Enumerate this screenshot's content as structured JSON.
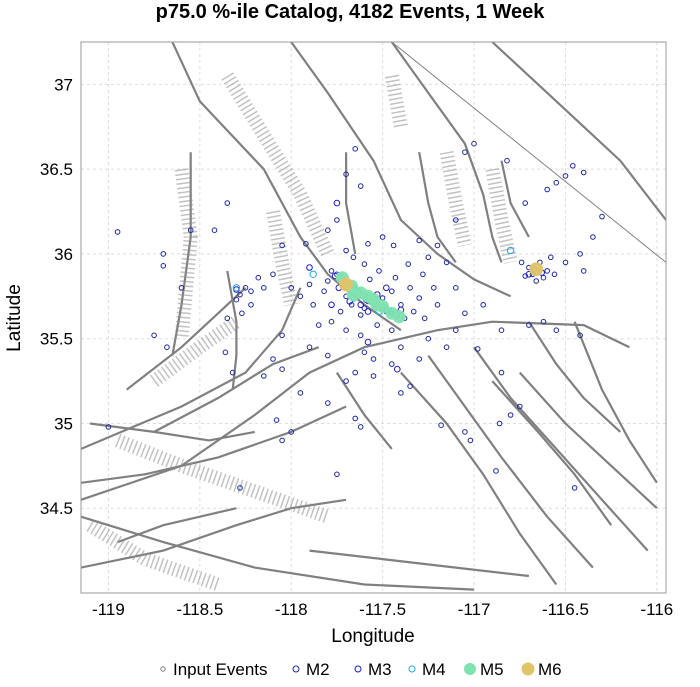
{
  "chart_data": {
    "type": "scatter",
    "title": "p75.0 %-ile Catalog, 4182 Events, 1 Week",
    "xlabel": "Longitude",
    "ylabel": "Latitude",
    "xlim": [
      -119.15,
      -115.95
    ],
    "ylim": [
      34.0,
      37.25
    ],
    "x_ticks": [
      -119,
      -118.5,
      -118,
      -117.5,
      -117,
      -116.5,
      -116
    ],
    "y_ticks": [
      34.5,
      35,
      35.5,
      36,
      36.5,
      37
    ],
    "x_tick_labels": [
      "-119",
      "-118.5",
      "-118",
      "-117.5",
      "-117",
      "-116.5",
      "-116"
    ],
    "y_tick_labels": [
      "34.5",
      "35",
      "35.5",
      "36",
      "36.5",
      "37"
    ],
    "grid": true,
    "legend_position": "bottom",
    "series": [
      {
        "name": "Input Events",
        "marker": "small-open-circle",
        "color": "#808080",
        "points": []
      },
      {
        "name": "M2",
        "marker": "open-circle",
        "color": "#1e2a9c",
        "points": [
          [
            -117.72,
            35.86
          ],
          [
            -117.68,
            35.82
          ],
          [
            -117.65,
            35.79
          ],
          [
            -117.62,
            35.76
          ],
          [
            -117.58,
            35.72
          ],
          [
            -117.55,
            35.7
          ],
          [
            -117.52,
            35.68
          ],
          [
            -117.48,
            35.66
          ],
          [
            -117.45,
            35.65
          ],
          [
            -117.42,
            35.63
          ],
          [
            -117.75,
            35.88
          ],
          [
            -117.78,
            35.9
          ],
          [
            -117.7,
            35.75
          ],
          [
            -117.6,
            35.68
          ],
          [
            -117.5,
            35.74
          ],
          [
            -117.45,
            35.78
          ],
          [
            -117.4,
            35.7
          ],
          [
            -117.38,
            35.62
          ],
          [
            -117.62,
            35.64
          ],
          [
            -117.67,
            35.7
          ],
          [
            -117.8,
            35.84
          ],
          [
            -117.82,
            35.78
          ],
          [
            -117.73,
            35.66
          ],
          [
            -117.57,
            35.85
          ],
          [
            -117.52,
            35.9
          ],
          [
            -117.43,
            35.86
          ],
          [
            -117.35,
            35.8
          ],
          [
            -117.3,
            35.74
          ],
          [
            -117.33,
            35.66
          ],
          [
            -117.28,
            35.88
          ],
          [
            -117.36,
            35.94
          ],
          [
            -117.6,
            35.94
          ],
          [
            -117.66,
            35.98
          ],
          [
            -117.7,
            36.02
          ],
          [
            -117.58,
            36.06
          ],
          [
            -117.5,
            36.1
          ],
          [
            -117.44,
            36.05
          ],
          [
            -117.3,
            36.08
          ],
          [
            -117.25,
            35.98
          ],
          [
            -117.22,
            35.8
          ],
          [
            -117.2,
            35.7
          ],
          [
            -117.27,
            35.62
          ],
          [
            -117.45,
            35.55
          ],
          [
            -117.53,
            35.58
          ],
          [
            -117.62,
            35.52
          ],
          [
            -117.7,
            35.55
          ],
          [
            -117.78,
            35.6
          ],
          [
            -117.88,
            35.7
          ],
          [
            -117.9,
            35.82
          ],
          [
            -117.95,
            35.75
          ],
          [
            -118.0,
            35.8
          ],
          [
            -117.85,
            35.58
          ],
          [
            -117.9,
            35.45
          ],
          [
            -117.8,
            35.4
          ],
          [
            -117.6,
            35.42
          ],
          [
            -117.55,
            35.38
          ],
          [
            -117.65,
            35.3
          ],
          [
            -117.7,
            35.25
          ],
          [
            -117.55,
            35.28
          ],
          [
            -117.45,
            35.35
          ],
          [
            -117.4,
            35.45
          ],
          [
            -117.25,
            35.5
          ],
          [
            -117.15,
            35.45
          ],
          [
            -117.1,
            35.55
          ],
          [
            -117.05,
            35.65
          ],
          [
            -117.1,
            35.8
          ],
          [
            -117.15,
            35.95
          ],
          [
            -117.2,
            36.05
          ],
          [
            -117.1,
            36.2
          ],
          [
            -117.05,
            36.6
          ],
          [
            -117.0,
            36.65
          ],
          [
            -116.95,
            35.7
          ],
          [
            -116.85,
            35.55
          ],
          [
            -116.8,
            35.05
          ],
          [
            -116.75,
            35.1
          ],
          [
            -116.7,
            35.92
          ],
          [
            -116.68,
            35.88
          ],
          [
            -116.64,
            35.95
          ],
          [
            -116.62,
            35.86
          ],
          [
            -116.6,
            35.9
          ],
          [
            -116.66,
            35.84
          ],
          [
            -116.72,
            35.87
          ],
          [
            -116.74,
            35.95
          ],
          [
            -116.56,
            35.88
          ],
          [
            -116.58,
            35.98
          ],
          [
            -116.5,
            35.95
          ],
          [
            -116.42,
            36.0
          ],
          [
            -116.4,
            35.9
          ],
          [
            -116.35,
            36.1
          ],
          [
            -116.3,
            36.22
          ],
          [
            -116.46,
            36.52
          ],
          [
            -116.4,
            36.48
          ],
          [
            -116.5,
            36.46
          ],
          [
            -116.6,
            36.38
          ],
          [
            -116.55,
            36.42
          ],
          [
            -116.82,
            36.55
          ],
          [
            -116.72,
            36.3
          ],
          [
            -116.45,
            34.62
          ],
          [
            -116.88,
            34.72
          ],
          [
            -116.86,
            35.0
          ],
          [
            -116.7,
            35.58
          ],
          [
            -116.62,
            35.6
          ],
          [
            -117.62,
            36.4
          ],
          [
            -117.65,
            36.62
          ],
          [
            -117.7,
            36.47
          ],
          [
            -117.75,
            36.2
          ],
          [
            -117.8,
            36.14
          ],
          [
            -117.92,
            36.06
          ],
          [
            -118.05,
            36.05
          ],
          [
            -118.1,
            35.88
          ],
          [
            -118.15,
            35.8
          ],
          [
            -118.18,
            35.86
          ],
          [
            -118.22,
            35.78
          ],
          [
            -118.25,
            35.8
          ],
          [
            -118.28,
            35.76
          ],
          [
            -118.22,
            35.7
          ],
          [
            -118.27,
            35.65
          ],
          [
            -118.3,
            35.73
          ],
          [
            -118.35,
            35.62
          ],
          [
            -118.36,
            35.42
          ],
          [
            -118.32,
            35.3
          ],
          [
            -118.05,
            35.52
          ],
          [
            -118.1,
            35.38
          ],
          [
            -118.15,
            35.28
          ],
          [
            -118.05,
            35.32
          ],
          [
            -117.95,
            35.18
          ],
          [
            -117.8,
            35.12
          ],
          [
            -117.65,
            35.03
          ],
          [
            -117.62,
            34.98
          ],
          [
            -117.75,
            34.7
          ],
          [
            -118.0,
            34.95
          ],
          [
            -118.05,
            34.9
          ],
          [
            -118.08,
            35.02
          ],
          [
            -118.35,
            36.3
          ],
          [
            -118.42,
            36.14
          ],
          [
            -118.55,
            36.14
          ],
          [
            -118.7,
            36.0
          ],
          [
            -118.7,
            35.93
          ],
          [
            -118.6,
            35.8
          ],
          [
            -118.75,
            35.52
          ],
          [
            -118.68,
            35.45
          ],
          [
            -118.95,
            36.13
          ],
          [
            -119.0,
            34.98
          ],
          [
            -118.28,
            34.62
          ],
          [
            -117.4,
            35.18
          ],
          [
            -117.3,
            35.38
          ],
          [
            -117.35,
            35.22
          ],
          [
            -116.98,
            35.44
          ],
          [
            -116.85,
            35.3
          ],
          [
            -117.05,
            34.95
          ],
          [
            -117.18,
            34.99
          ],
          [
            -117.02,
            34.9
          ],
          [
            -116.55,
            35.55
          ],
          [
            -116.42,
            35.52
          ]
        ]
      },
      {
        "name": "M3",
        "marker": "open-circle",
        "color": "#1c1cc8",
        "points": [
          [
            -117.7,
            35.84
          ],
          [
            -117.66,
            35.8
          ],
          [
            -117.63,
            35.77
          ],
          [
            -117.59,
            35.73
          ],
          [
            -117.55,
            35.71
          ],
          [
            -117.5,
            35.69
          ],
          [
            -117.46,
            35.66
          ],
          [
            -117.43,
            35.64
          ],
          [
            -117.76,
            35.87
          ],
          [
            -117.62,
            35.7
          ],
          [
            -117.58,
            35.66
          ],
          [
            -117.68,
            35.72
          ],
          [
            -117.53,
            35.76
          ],
          [
            -117.48,
            35.8
          ],
          [
            -117.74,
            35.8
          ],
          [
            -117.4,
            35.67
          ],
          [
            -116.67,
            35.91
          ],
          [
            -116.63,
            35.89
          ],
          [
            -116.7,
            35.88
          ],
          [
            -117.58,
            35.48
          ],
          [
            -117.42,
            35.32
          ],
          [
            -117.75,
            36.3
          ],
          [
            -118.3,
            35.79
          ],
          [
            -117.9,
            35.92
          ],
          [
            -117.78,
            35.7
          ]
        ]
      },
      {
        "name": "M4",
        "marker": "open-circle",
        "color": "#22a8d8",
        "points": [
          [
            -117.73,
            35.86
          ],
          [
            -117.64,
            35.78
          ],
          [
            -117.56,
            35.72
          ],
          [
            -117.48,
            35.67
          ],
          [
            -117.44,
            35.65
          ],
          [
            -117.6,
            35.75
          ],
          [
            -116.8,
            36.02
          ],
          [
            -118.3,
            35.8
          ],
          [
            -117.88,
            35.88
          ],
          [
            -117.52,
            35.66
          ],
          [
            -117.66,
            35.74
          ]
        ]
      },
      {
        "name": "M5",
        "marker": "filled-circle",
        "color": "#7fe3b0",
        "points": [
          [
            -117.72,
            35.86
          ],
          [
            -117.67,
            35.81
          ],
          [
            -117.62,
            35.77
          ],
          [
            -117.58,
            35.75
          ],
          [
            -117.55,
            35.73
          ],
          [
            -117.5,
            35.69
          ],
          [
            -117.45,
            35.65
          ],
          [
            -117.41,
            35.63
          ],
          [
            -117.66,
            35.76
          ],
          [
            -117.53,
            35.7
          ]
        ]
      },
      {
        "name": "M6",
        "marker": "filled-circle",
        "color": "#e0c468",
        "points": [
          [
            -117.7,
            35.82
          ],
          [
            -116.66,
            35.91
          ]
        ]
      }
    ]
  }
}
